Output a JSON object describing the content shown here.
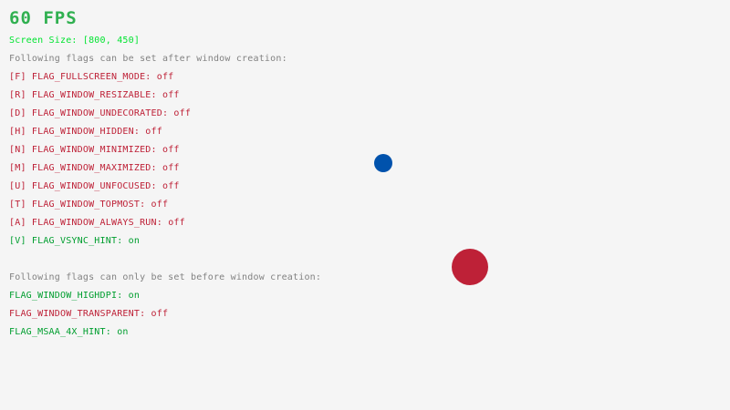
{
  "colors": {
    "fps": "#30b050",
    "screen": "#00e430",
    "gray": "#828282",
    "off": "#be2137",
    "on": "#009e2f",
    "blue_ball": "#0052ac",
    "red_ball": "#be2137"
  },
  "fps": "60 FPS",
  "screen_size": "Screen Size: [800, 450]",
  "after_header": "Following flags can be set after window creation:",
  "after_flags": [
    {
      "label": "[F] FLAG_FULLSCREEN_MODE: ",
      "state": "off"
    },
    {
      "label": "[R] FLAG_WINDOW_RESIZABLE: ",
      "state": "off"
    },
    {
      "label": "[D] FLAG_WINDOW_UNDECORATED: ",
      "state": "off"
    },
    {
      "label": "[H] FLAG_WINDOW_HIDDEN: ",
      "state": "off"
    },
    {
      "label": "[N] FLAG_WINDOW_MINIMIZED: ",
      "state": "off"
    },
    {
      "label": "[M] FLAG_WINDOW_MAXIMIZED: ",
      "state": "off"
    },
    {
      "label": "[U] FLAG_WINDOW_UNFOCUSED: ",
      "state": "off"
    },
    {
      "label": "[T] FLAG_WINDOW_TOPMOST: ",
      "state": "off"
    },
    {
      "label": "[A] FLAG_WINDOW_ALWAYS_RUN: ",
      "state": "off"
    },
    {
      "label": "[V] FLAG_VSYNC_HINT: ",
      "state": "on"
    }
  ],
  "before_header": "Following flags can only be set before window creation:",
  "before_flags": [
    {
      "label": "FLAG_WINDOW_HIGHDPI: ",
      "state": "on"
    },
    {
      "label": "FLAG_WINDOW_TRANSPARENT: ",
      "state": "off"
    },
    {
      "label": "FLAG_MSAA_4X_HINT: ",
      "state": "on"
    }
  ]
}
